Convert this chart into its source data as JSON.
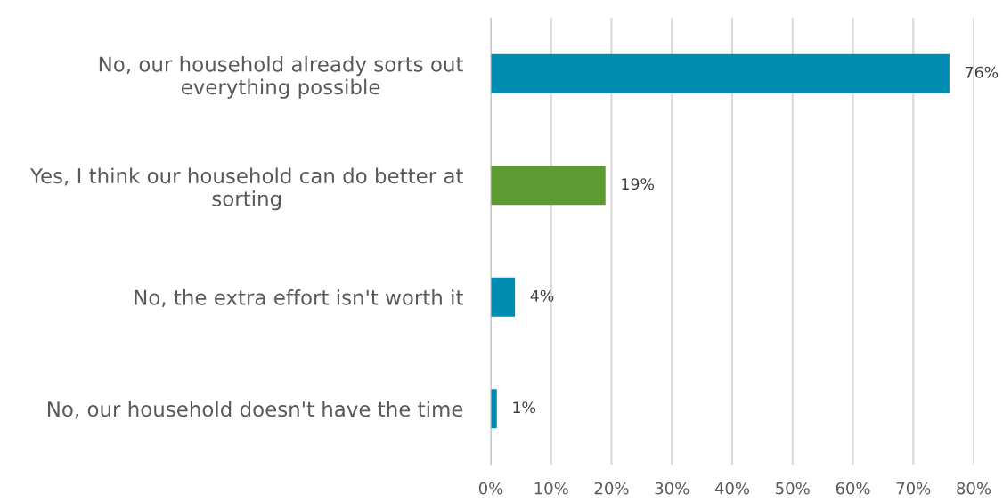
{
  "chart_data": {
    "type": "bar",
    "orientation": "horizontal",
    "categories": [
      "No, our household already sorts out everything possible",
      "Yes, I think our household can do better at sorting",
      "No, the extra effort isn't worth it",
      "No, our household doesn't have the time"
    ],
    "values": [
      76,
      19,
      4,
      1
    ],
    "colors": [
      "#008bb0",
      "#5e9a32",
      "#008bb0",
      "#008bb0"
    ],
    "value_labels": [
      "76%",
      "19%",
      "4%",
      "1%"
    ],
    "xlim": [
      0,
      80
    ],
    "xticks": [
      {
        "value": 0,
        "label": "0%"
      },
      {
        "value": 10,
        "label": "10%"
      },
      {
        "value": 20,
        "label": "20%"
      },
      {
        "value": 30,
        "label": "30%"
      },
      {
        "value": 40,
        "label": "40%"
      },
      {
        "value": 50,
        "label": "50%"
      },
      {
        "value": 60,
        "label": "60%"
      },
      {
        "value": 70,
        "label": "70%"
      },
      {
        "value": 80,
        "label": "80%"
      }
    ],
    "grid": "x",
    "legend": false
  }
}
